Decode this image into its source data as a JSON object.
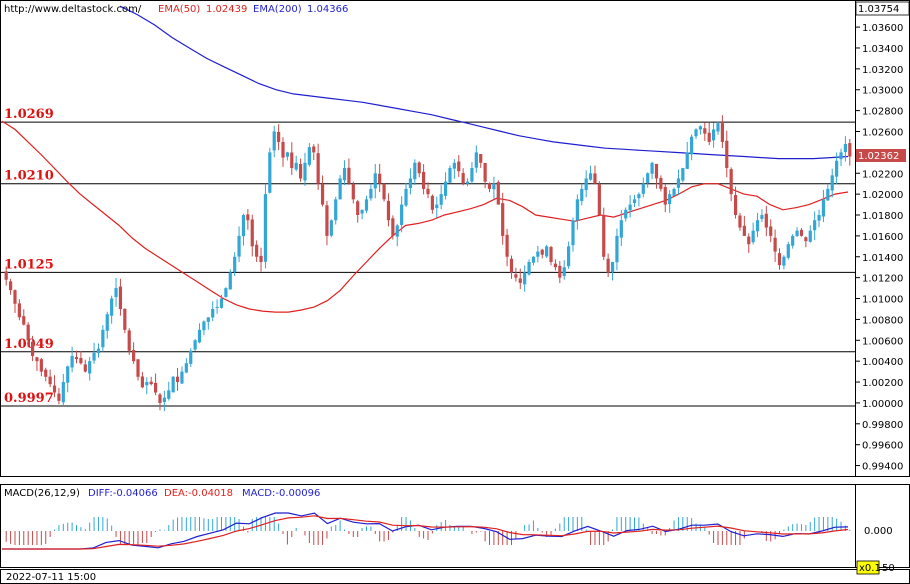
{
  "header": {
    "site": "http://www.deltastock.com/",
    "ema50_label": "EMA(50)",
    "ema50_value": "1.02439",
    "ema200_label": "EMA(200)",
    "ema200_value": "1.04366"
  },
  "macd_header": {
    "name": "MACD(26,12,9)",
    "diff": "DIFF:-0.04066",
    "dea": "DEA:-0.04018",
    "macd": "MACD:-0.00096"
  },
  "footer": {
    "date": "2022-07-11 15:00",
    "scale_button": "x0.1",
    "scale_value": "50"
  },
  "price_axis": {
    "top_value": "1.03754",
    "current_value": "1.02362",
    "macd_zero_label": "0.000"
  },
  "colors": {
    "ema50": "#e02020",
    "ema200": "#1f1fd0",
    "bull_candle": "#33a6d8",
    "bear_candle": "#c74a4a",
    "level_text": "#e01010"
  },
  "chart_data": {
    "type": "candlestick",
    "symbol_source": "deltastock",
    "ylim": [
      0.993,
      1.0385
    ],
    "y_ticks": [
      "1.03600",
      "1.03400",
      "1.03200",
      "1.03000",
      "1.02800",
      "1.02600",
      "1.02400",
      "1.02200",
      "1.02000",
      "1.01800",
      "1.01600",
      "1.01400",
      "1.01200",
      "1.01000",
      "1.00800",
      "1.00600",
      "1.00400",
      "1.00200",
      "1.00000",
      "0.99800",
      "0.99600",
      "0.99400"
    ],
    "horizontal_levels": [
      {
        "label": "1.0269",
        "value": 1.0269
      },
      {
        "label": "1.0210",
        "value": 1.021
      },
      {
        "label": "1.0125",
        "value": 1.0125
      },
      {
        "label": "1.0049",
        "value": 1.0049
      },
      {
        "label": "0.9997",
        "value": 0.9997
      }
    ],
    "close_series_approx": [
      1.0118,
      1.0108,
      1.0095,
      1.0082,
      1.0075,
      1.006,
      1.0045,
      1.004,
      1.003,
      1.0025,
      1.0018,
      1.001,
      1.0002,
      1.002,
      1.0035,
      1.0045,
      1.0042,
      1.0038,
      1.003,
      1.004,
      1.0048,
      1.0052,
      1.007,
      1.0085,
      1.01,
      1.011,
      1.009,
      1.007,
      1.005,
      1.004,
      1.0025,
      1.0015,
      1.002,
      1.0018,
      1.001,
      1.0,
      1.0005,
      1.0012,
      1.0025,
      1.002,
      1.003,
      1.0038,
      1.005,
      1.006,
      1.007,
      1.0078,
      1.0082,
      1.009,
      1.0092,
      1.01,
      1.011,
      1.0125,
      1.014,
      1.016,
      1.018,
      1.0175,
      1.015,
      1.014,
      1.0135,
      1.02,
      1.024,
      1.026,
      1.025,
      1.0235,
      1.024,
      1.0225,
      1.023,
      1.0215,
      1.023,
      1.0245,
      1.024,
      1.021,
      1.019,
      1.016,
      1.0175,
      1.0195,
      1.0215,
      1.0225,
      1.021,
      1.0195,
      1.018,
      1.0185,
      1.0195,
      1.0205,
      1.022,
      1.021,
      1.0195,
      1.0175,
      1.016,
      1.017,
      1.019,
      1.0205,
      1.0215,
      1.023,
      1.022,
      1.0205,
      1.02,
      1.0185,
      1.019,
      1.02,
      1.0212,
      1.0225,
      1.023,
      1.0222,
      1.021,
      1.0212,
      1.0225,
      1.024,
      1.023,
      1.0212,
      1.0205,
      1.021,
      1.019,
      1.016,
      1.014,
      1.0125,
      1.012,
      1.0115,
      1.0125,
      1.0135,
      1.014,
      1.0145,
      1.0142,
      1.015,
      1.0135,
      1.013,
      1.012,
      1.013,
      1.015,
      1.0175,
      1.0195,
      1.0205,
      1.0215,
      1.022,
      1.021,
      1.018,
      1.014,
      1.0125,
      1.0135,
      1.016,
      1.0175,
      1.0185,
      1.019,
      1.0195,
      1.02,
      1.021,
      1.022,
      1.023,
      1.0215,
      1.0205,
      1.019,
      1.02,
      1.0205,
      1.0215,
      1.0225,
      1.024,
      1.0255,
      1.0262,
      1.0265,
      1.0258,
      1.025,
      1.0262,
      1.0268,
      1.025,
      1.0225,
      1.02,
      1.018,
      1.0168,
      1.016,
      1.0152,
      1.0165,
      1.0175,
      1.018,
      1.0168,
      1.016,
      1.0145,
      1.0132,
      1.014,
      1.0152,
      1.016,
      1.0165,
      1.016,
      1.0155,
      1.0165,
      1.0175,
      1.018,
      1.0195,
      1.0205,
      1.0218,
      1.0232,
      1.024,
      1.0248,
      1.0236
    ],
    "ema50_approx": [
      1.027,
      1.0262,
      1.025,
      1.0238,
      1.0225,
      1.0212,
      1.02,
      1.019,
      1.018,
      1.017,
      1.0158,
      1.0148,
      1.014,
      1.0132,
      1.0124,
      1.0116,
      1.0108,
      1.01,
      1.0094,
      1.009,
      1.0088,
      1.0087,
      1.0087,
      1.0089,
      1.0092,
      1.0098,
      1.0108,
      1.0122,
      1.0135,
      1.0148,
      1.016,
      1.017,
      1.0172,
      1.0175,
      1.018,
      1.0183,
      1.0186,
      1.019,
      1.0196,
      1.0194,
      1.0188,
      1.018,
      1.0178,
      1.0176,
      1.0174,
      1.0177,
      1.018,
      1.0178,
      1.0182,
      1.0186,
      1.019,
      1.0194,
      1.02,
      1.0207,
      1.021,
      1.021,
      1.0205,
      1.02,
      1.0198,
      1.019,
      1.0185,
      1.0187,
      1.019,
      1.0195,
      1.02,
      1.0202
    ],
    "ema200_approx": [
      1.038,
      1.0372,
      1.0362,
      1.035,
      1.034,
      1.033,
      1.0322,
      1.0314,
      1.0306,
      1.03,
      1.0296,
      1.0294,
      1.0292,
      1.029,
      1.0288,
      1.0285,
      1.0282,
      1.0279,
      1.0276,
      1.0272,
      1.0268,
      1.0264,
      1.026,
      1.0256,
      1.0253,
      1.025,
      1.0248,
      1.0246,
      1.0244,
      1.0243,
      1.0242,
      1.0241,
      1.024,
      1.0239,
      1.0238,
      1.0237,
      1.0236,
      1.0235,
      1.0234,
      1.0234,
      1.0234,
      1.0235,
      1.0236
    ],
    "macd_zero": 0.0
  }
}
